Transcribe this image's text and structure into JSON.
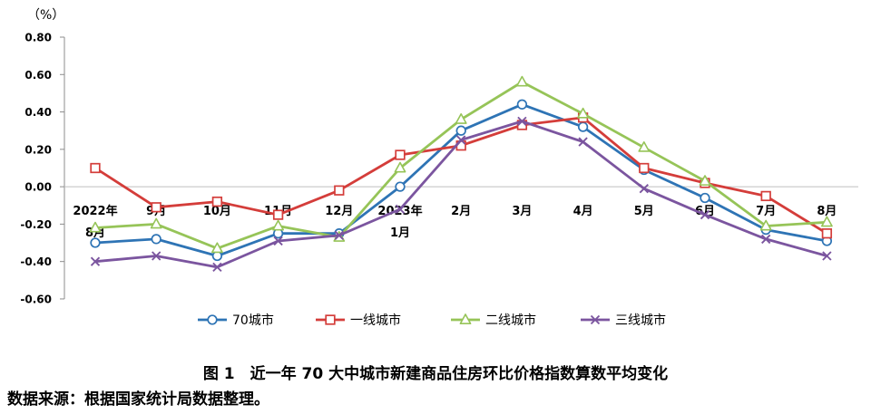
{
  "chart_data": {
    "type": "line",
    "unit_label": "（%）",
    "categories": [
      "2022年8月",
      "9月",
      "10月",
      "11月",
      "12月",
      "2023年1月",
      "2月",
      "3月",
      "4月",
      "5月",
      "6月",
      "7月",
      "8月"
    ],
    "yticks": [
      "0.80",
      "0.60",
      "0.40",
      "0.20",
      "0.00",
      "-0.20",
      "-0.40",
      "-0.60"
    ],
    "ylim": [
      -0.6,
      0.8
    ],
    "grid": false,
    "legend_position": "bottom",
    "series": [
      {
        "name": "70城市",
        "color": "#2E74B5",
        "marker": "circle",
        "values": [
          -0.3,
          -0.28,
          -0.37,
          -0.25,
          -0.25,
          0.0,
          0.3,
          0.44,
          0.32,
          0.09,
          -0.06,
          -0.23,
          -0.29
        ]
      },
      {
        "name": "一线城市",
        "color": "#D43D3A",
        "marker": "square",
        "values": [
          0.1,
          -0.11,
          -0.08,
          -0.15,
          -0.02,
          0.17,
          0.22,
          0.33,
          0.37,
          0.1,
          0.02,
          -0.05,
          -0.25
        ]
      },
      {
        "name": "二线城市",
        "color": "#96C458",
        "marker": "triangle",
        "values": [
          -0.22,
          -0.2,
          -0.33,
          -0.21,
          -0.27,
          0.1,
          0.36,
          0.56,
          0.39,
          0.21,
          0.03,
          -0.21,
          -0.19
        ]
      },
      {
        "name": "三线城市",
        "color": "#7B559F",
        "marker": "cross",
        "values": [
          -0.4,
          -0.37,
          -0.43,
          -0.29,
          -0.26,
          -0.12,
          0.25,
          0.35,
          0.24,
          -0.01,
          -0.15,
          -0.28,
          -0.37
        ]
      }
    ]
  },
  "caption": "图 1　近一年 70 大中城市新建商品住房环比价格指数算数平均变化",
  "source": "数据来源：根据国家统计局数据整理。"
}
